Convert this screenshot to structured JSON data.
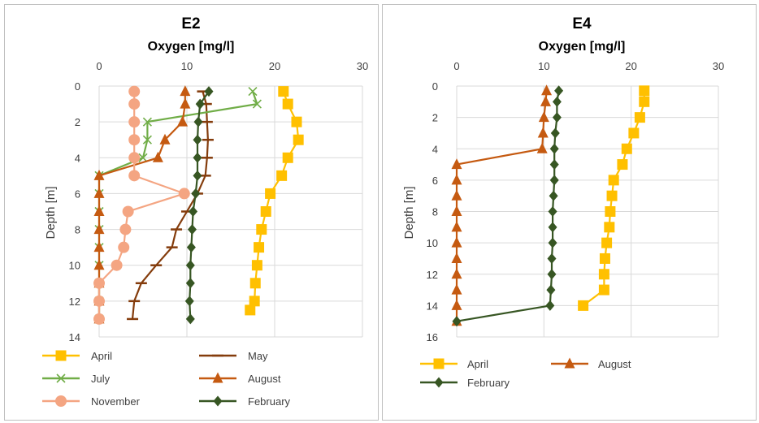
{
  "chart_data": [
    {
      "type": "line",
      "title": "E2",
      "xlabel": "Oxygen [mg/l]",
      "ylabel": "Depth [m]",
      "xlim": [
        0,
        30
      ],
      "ylim": [
        14,
        0
      ],
      "x_ticks": [
        "0",
        "10",
        "20",
        "30"
      ],
      "y_ticks": [
        "0",
        "2",
        "4",
        "6",
        "8",
        "10",
        "12",
        "14"
      ],
      "series": [
        {
          "name": "April",
          "color": "#FFC000",
          "marker": "square",
          "depth": [
            0.3,
            1,
            2,
            3,
            4,
            5,
            6,
            7,
            8,
            9,
            10,
            11,
            12,
            12.5
          ],
          "oxygen": [
            21,
            21.5,
            22.5,
            22.7,
            21.5,
            20.8,
            19.5,
            19,
            18.5,
            18.2,
            18,
            17.8,
            17.7,
            17.2
          ]
        },
        {
          "name": "May",
          "color": "#843C0C",
          "marker": "dash",
          "depth": [
            0.3,
            1,
            2,
            3,
            4,
            5,
            6,
            7,
            8,
            9,
            10,
            11,
            12,
            13
          ],
          "oxygen": [
            11.8,
            12.2,
            12.3,
            12.4,
            12.3,
            12.1,
            11.2,
            10,
            8.8,
            8.3,
            6.5,
            4.8,
            4,
            3.8
          ]
        },
        {
          "name": "July",
          "color": "#70AD47",
          "marker": "x",
          "depth": [
            0.3,
            1,
            2,
            3,
            4,
            5,
            6,
            7,
            8,
            9,
            10,
            11,
            12,
            13
          ],
          "oxygen": [
            17.5,
            18,
            5.5,
            5.5,
            5,
            0,
            0,
            0,
            0,
            0,
            0,
            0,
            0,
            0
          ]
        },
        {
          "name": "August",
          "color": "#C55A11",
          "marker": "triangle",
          "depth": [
            0.3,
            1,
            2,
            3,
            4,
            5,
            6,
            7,
            8,
            9,
            10,
            11,
            12,
            13
          ],
          "oxygen": [
            9.8,
            9.8,
            9.5,
            7.5,
            6.7,
            0,
            0,
            0,
            0,
            0,
            0,
            0,
            0,
            0
          ]
        },
        {
          "name": "November",
          "color": "#F4A582",
          "marker": "circle",
          "depth": [
            0.3,
            1,
            2,
            3,
            4,
            5,
            6,
            7,
            8,
            9,
            10,
            11,
            12,
            13
          ],
          "oxygen": [
            4,
            4,
            4,
            4,
            4,
            4,
            9.7,
            3.3,
            3,
            2.8,
            2,
            0,
            0,
            0
          ]
        },
        {
          "name": "February",
          "color": "#375623",
          "marker": "diamond",
          "depth": [
            0.3,
            1,
            2,
            3,
            4,
            5,
            6,
            7,
            8,
            9,
            10,
            11,
            12,
            13
          ],
          "oxygen": [
            12.5,
            11.5,
            11.3,
            11.2,
            11.2,
            11.2,
            11,
            10.7,
            10.6,
            10.5,
            10.4,
            10.4,
            10.3,
            10.4
          ]
        }
      ],
      "legend": {
        "placement": "bottom",
        "entries": [
          "April",
          "May",
          "July",
          "August",
          "November",
          "February"
        ]
      }
    },
    {
      "type": "line",
      "title": "E4",
      "xlabel": "Oxygen [mg/l]",
      "ylabel": "Depth [m]",
      "xlim": [
        0,
        30
      ],
      "ylim": [
        16,
        0
      ],
      "x_ticks": [
        "0",
        "10",
        "20",
        "30"
      ],
      "y_ticks": [
        "0",
        "2",
        "4",
        "6",
        "8",
        "10",
        "12",
        "14",
        "16"
      ],
      "series": [
        {
          "name": "April",
          "color": "#FFC000",
          "marker": "square",
          "depth": [
            0.3,
            1,
            2,
            3,
            4,
            5,
            6,
            7,
            8,
            9,
            10,
            11,
            12,
            13,
            14
          ],
          "oxygen": [
            21.5,
            21.5,
            21,
            20.3,
            19.5,
            19,
            18,
            17.8,
            17.6,
            17.5,
            17.2,
            17,
            16.9,
            16.9,
            14.5
          ]
        },
        {
          "name": "August",
          "color": "#C55A11",
          "marker": "triangle",
          "depth": [
            0.3,
            1,
            2,
            3,
            4,
            5,
            6,
            7,
            8,
            9,
            10,
            11,
            12,
            13,
            14,
            15
          ],
          "oxygen": [
            10.3,
            10.2,
            10,
            9.9,
            9.8,
            0,
            0,
            0,
            0,
            0,
            0,
            0,
            0,
            0,
            0,
            0
          ]
        },
        {
          "name": "February",
          "color": "#375623",
          "marker": "diamond",
          "depth": [
            0.3,
            1,
            2,
            3,
            4,
            5,
            6,
            7,
            8,
            9,
            10,
            11,
            12,
            13,
            14,
            15
          ],
          "oxygen": [
            11.7,
            11.5,
            11.5,
            11.3,
            11.2,
            11.2,
            11.2,
            11.1,
            11,
            11,
            11,
            10.9,
            10.9,
            10.8,
            10.7,
            0
          ]
        }
      ],
      "legend": {
        "placement": "bottom",
        "entries": [
          "April",
          "August",
          "February"
        ]
      }
    }
  ]
}
